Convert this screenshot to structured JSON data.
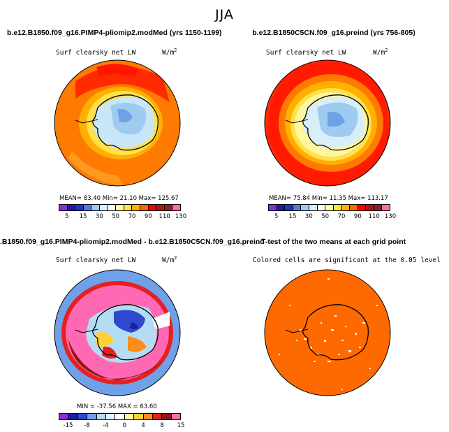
{
  "season_title": "JJA",
  "panels": [
    {
      "title": "b.e12.B1850.f09_g16.PIMP4-pliomip2.modMed (yrs 1150-1199)",
      "variable": "Surf clearsky net LW",
      "units": "W/m",
      "units_exp": "2",
      "stats": "MEAN=   83.40   Min=   21.10   Max=  125.67",
      "colorbar_ticks": [
        "5",
        "15",
        "30",
        "50",
        "70",
        "90",
        "110",
        "130"
      ]
    },
    {
      "title": "b.e12.B1850C5CN.f09_g16.preind (yrs 756-805)",
      "variable": "Surf clearsky net LW",
      "units": "W/m",
      "units_exp": "2",
      "stats": "MEAN=   75.84   Min=   11.35   Max=  113.17",
      "colorbar_ticks": [
        "5",
        "15",
        "30",
        "50",
        "70",
        "90",
        "110",
        "130"
      ]
    },
    {
      "title": ".B1850.f09_g16.PIMP4-pliomip2.modMed - b.e12.B1850C5CN.f09_g16.preind",
      "variable": "Surf clearsky net LW",
      "units": "W/m",
      "units_exp": "2",
      "stats": "MIN = -37.56  MAX =   63.60",
      "colorbar_ticks": [
        "-15",
        "-8",
        "-4",
        "0",
        "4",
        "8",
        "15"
      ]
    },
    {
      "title": "T-test of the two means at each grid point",
      "subtitle": "Colored cells are significant at the 0.05 level"
    }
  ],
  "colors": {
    "abs_scale": [
      "#8a2be2",
      "#1e1e9e",
      "#2233cc",
      "#4f7fd8",
      "#9ecbf0",
      "#d8eef8",
      "#ffffff",
      "#ffffa8",
      "#ffe14d",
      "#ffb000",
      "#ff6a00",
      "#ff0000",
      "#b51212",
      "#8b2020",
      "#ff69b4"
    ],
    "diff_scale": [
      "#8a2be2",
      "#1e1e9e",
      "#2f48d0",
      "#6fa0e8",
      "#b5dcf5",
      "#e4f3fb",
      "#ffffff",
      "#fff7a0",
      "#ffcf3a",
      "#ff8c1a",
      "#e62020",
      "#8b1a1a",
      "#ff69b4"
    ],
    "ttest_fill": "#ff6a00",
    "land_outline": "#000000"
  }
}
